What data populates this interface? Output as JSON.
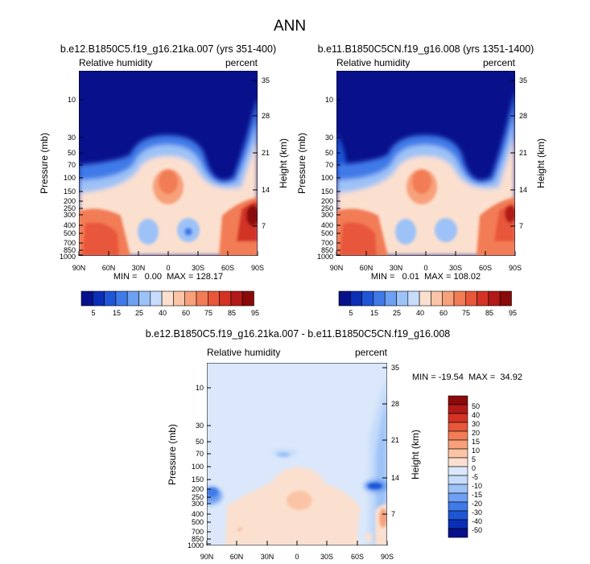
{
  "figure_title": "ANN",
  "colors": {
    "cb_pos": [
      "#08108c",
      "#0a2fb6",
      "#1f56d6",
      "#3f7ae8",
      "#6d9ff2",
      "#9dc2f7",
      "#c6dcfa",
      "#fbe0cf",
      "#fbc4a6",
      "#f7a07a",
      "#f27c55",
      "#e8573a",
      "#d33325",
      "#b21a17",
      "#8a0a0a"
    ],
    "cb_diff": [
      "#08108c",
      "#0a2fb6",
      "#1f56d6",
      "#3f7ae8",
      "#6d9ff2",
      "#9dc2f7",
      "#c6dcfa",
      "#dbe8fb",
      "#fbe0cf",
      "#fbc4a6",
      "#f7a07a",
      "#f27c55",
      "#e8573a",
      "#d33325",
      "#b21a17",
      "#8a0a0a"
    ]
  },
  "chart_data": [
    {
      "type": "heatmap",
      "title": "b.e12.B1850C5.f19_g16.21ka.007 (yrs 351-400)",
      "left_label": "Relative humidity",
      "right_label": "percent",
      "xlabel": "",
      "ylabel": "Pressure (mb)",
      "y2label": "Height (km)",
      "x_ticks": [
        "90N",
        "60N",
        "30N",
        "0",
        "30S",
        "60S",
        "90S"
      ],
      "y_ticks": [
        "10",
        "30",
        "50",
        "70",
        "100",
        "150",
        "200",
        "250",
        "300",
        "400",
        "500",
        "700",
        "850",
        "1000"
      ],
      "y2_ticks": [
        "35",
        "28",
        "21",
        "14",
        "7"
      ],
      "stats": "MIN =   0.00  MAX = 128.17",
      "min": 0.0,
      "max": 128.17,
      "colorbar_labels": [
        "5",
        "15",
        "25",
        "40",
        "60",
        "75",
        "85",
        "95"
      ]
    },
    {
      "type": "heatmap",
      "title": "b.e11.B1850C5CN.f19_g16.008 (yrs 1351-1400)",
      "left_label": "Relative humidity",
      "right_label": "percent",
      "xlabel": "",
      "ylabel": "Pressure (mb)",
      "y2label": "Height (km)",
      "x_ticks": [
        "90N",
        "60N",
        "30N",
        "0",
        "30S",
        "60S",
        "90S"
      ],
      "y_ticks": [
        "10",
        "30",
        "50",
        "70",
        "100",
        "150",
        "200",
        "250",
        "300",
        "400",
        "500",
        "700",
        "850",
        "1000"
      ],
      "y2_ticks": [
        "35",
        "28",
        "21",
        "14",
        "7"
      ],
      "stats": "MIN =   0.01  MAX = 108.02",
      "min": 0.01,
      "max": 108.02,
      "colorbar_labels": [
        "5",
        "15",
        "25",
        "40",
        "60",
        "75",
        "85",
        "95"
      ]
    },
    {
      "type": "heatmap",
      "title": "b.e12.B1850C5.f19_g16.21ka.007 - b.e11.B1850C5CN.f19_g16.008",
      "left_label": "Relative humidity",
      "right_label": "percent",
      "xlabel": "",
      "ylabel": "Pressure (mb)",
      "y2label": "Height (km)",
      "x_ticks": [
        "90N",
        "60N",
        "30N",
        "0",
        "30S",
        "60S",
        "90S"
      ],
      "y_ticks": [
        "10",
        "30",
        "50",
        "70",
        "100",
        "150",
        "200",
        "250",
        "300",
        "400",
        "500",
        "700",
        "850",
        "1000"
      ],
      "y2_ticks": [
        "35",
        "28",
        "21",
        "14",
        "7"
      ],
      "stats": "MIN = -19.54  MAX =  34.92",
      "min": -19.54,
      "max": 34.92,
      "colorbar_labels": [
        "50",
        "40",
        "30",
        "20",
        "15",
        "10",
        "5",
        "0",
        "-5",
        "-10",
        "-15",
        "-20",
        "-30",
        "-40",
        "-50"
      ]
    }
  ]
}
